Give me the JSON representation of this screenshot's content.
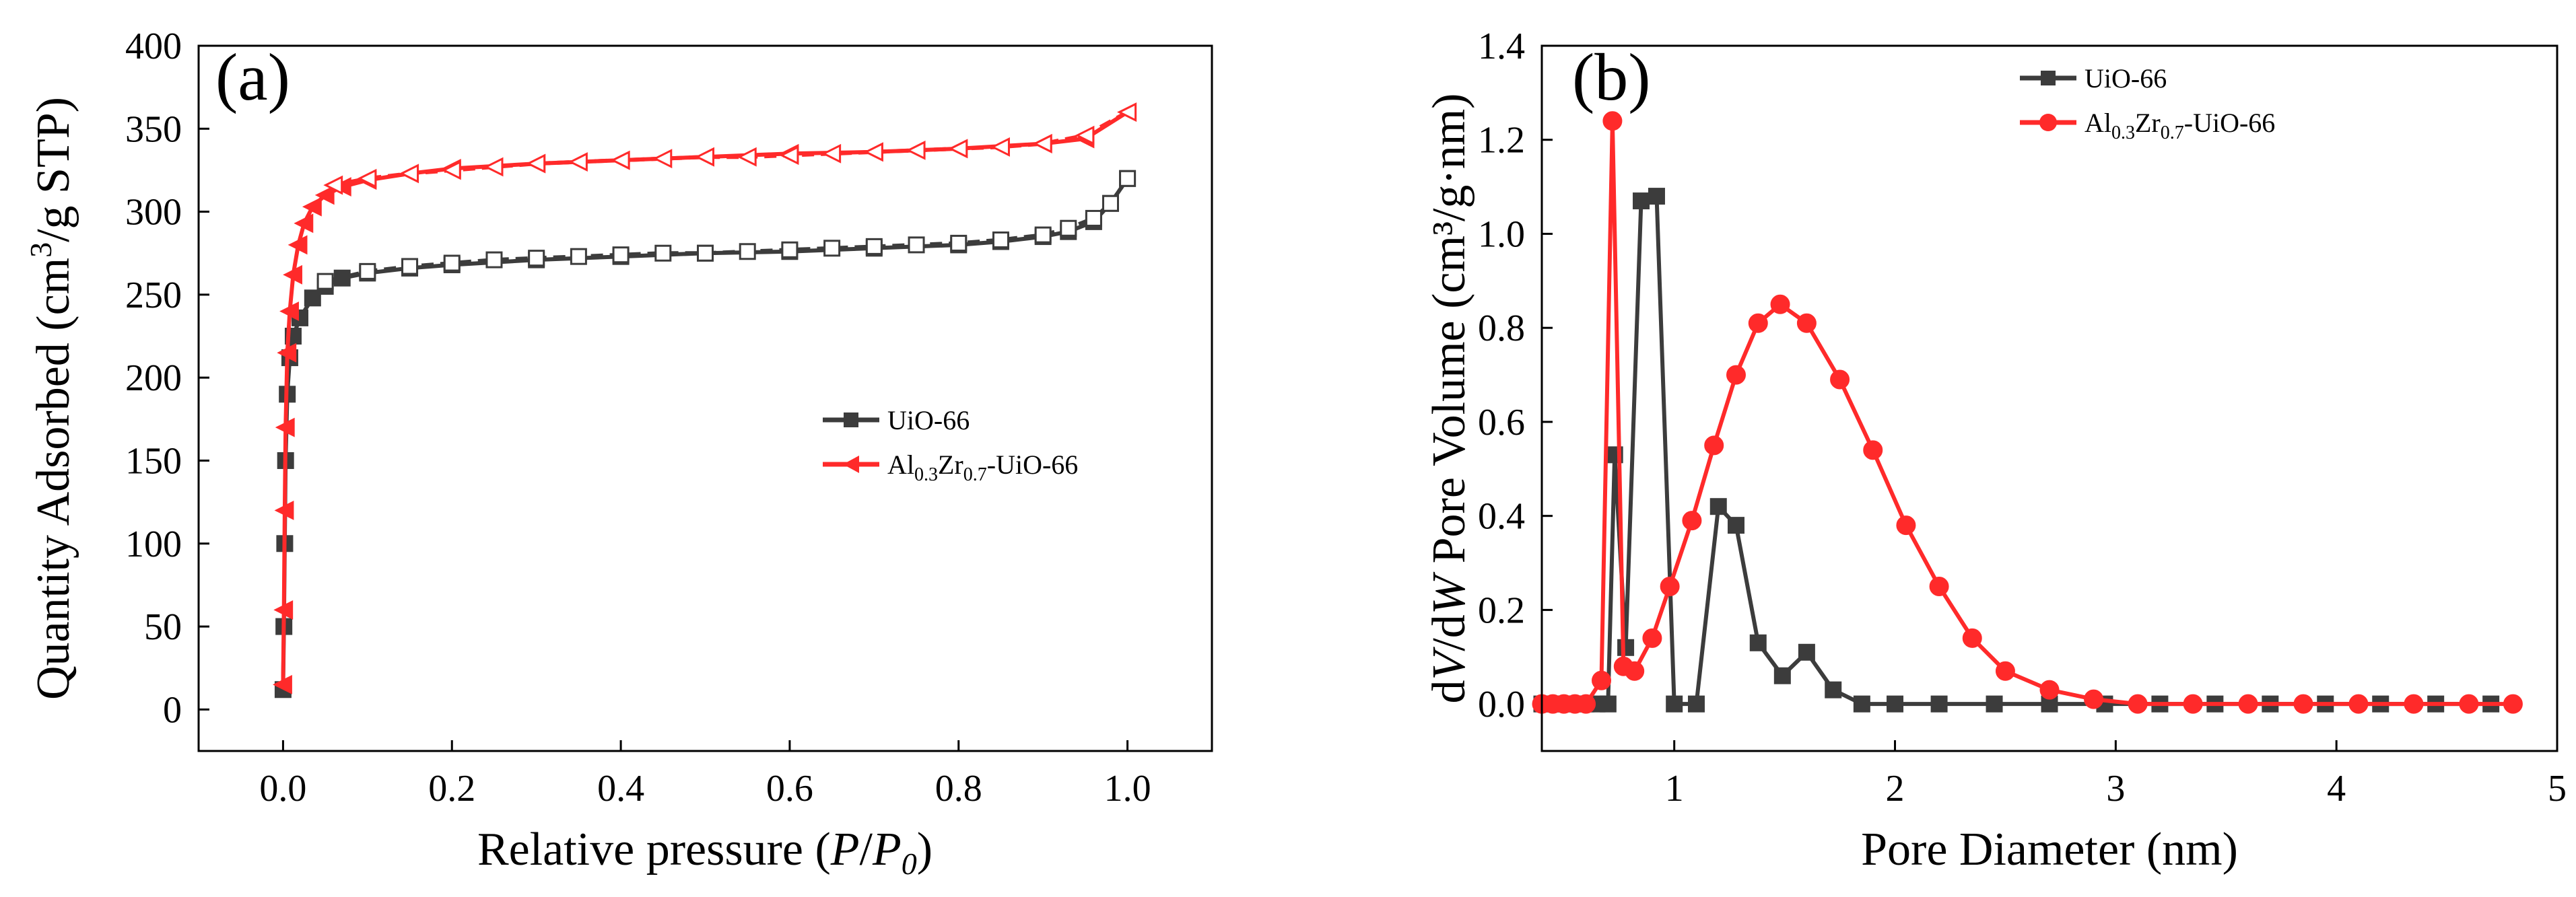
{
  "chart_data": [
    {
      "type": "line",
      "panel_label": "(a)",
      "xlabel_prefix": "Relative pressure (",
      "xlabel_italic_1": "P",
      "xlabel_sep": "/",
      "xlabel_italic_2": "P",
      "xlabel_sub": "0",
      "xlabel_suffix": ")",
      "ylabel_prefix": "Quantity Adsorbed (cm",
      "ylabel_sup": "3",
      "ylabel_suffix": "/g STP)",
      "xlim": [
        -0.1,
        1.1
      ],
      "ylim": [
        -25,
        400
      ],
      "xticks": [
        0.0,
        0.2,
        0.4,
        0.6,
        0.8,
        1.0
      ],
      "xtick_labels": [
        "0.0",
        "0.2",
        "0.4",
        "0.6",
        "0.8",
        "1.0"
      ],
      "yticks": [
        0,
        50,
        100,
        150,
        200,
        250,
        300,
        350,
        400
      ],
      "ytick_labels": [
        "0",
        "50",
        "100",
        "150",
        "200",
        "250",
        "300",
        "350",
        "400"
      ],
      "legend_position": "center-right",
      "series": [
        {
          "name": "UiO-66",
          "legend_prefix": "UiO-66",
          "color": "#3c3c3c",
          "marker": "square",
          "adsorption": {
            "x": [
              0.0,
              0.001,
              0.002,
              0.003,
              0.005,
              0.008,
              0.012,
              0.02,
              0.035,
              0.05,
              0.07,
              0.1,
              0.15,
              0.2,
              0.3,
              0.4,
              0.5,
              0.6,
              0.7,
              0.8,
              0.85,
              0.9,
              0.93,
              0.96,
              0.98,
              1.0
            ],
            "y": [
              12,
              50,
              100,
              150,
              190,
              212,
              225,
              236,
              248,
              255,
              260,
              263,
              266,
              268,
              271,
              273,
              275,
              276,
              278,
              280,
              282,
              285,
              288,
              294,
              305,
              320
            ]
          },
          "desorption": {
            "x": [
              1.0,
              0.98,
              0.96,
              0.93,
              0.9,
              0.85,
              0.8,
              0.75,
              0.7,
              0.65,
              0.6,
              0.55,
              0.5,
              0.45,
              0.4,
              0.35,
              0.3,
              0.25,
              0.2,
              0.15,
              0.1,
              0.05
            ],
            "y": [
              320,
              305,
              296,
              290,
              286,
              283,
              281,
              280,
              279,
              278,
              277,
              276,
              275,
              275,
              274,
              273,
              272,
              271,
              269,
              267,
              264,
              258
            ]
          }
        },
        {
          "name": "Al0.3Zr0.7-UiO-66",
          "legend_prefix": "Al",
          "legend_sub1": "0.3",
          "legend_mid": "Zr",
          "legend_sub2": "0.7",
          "legend_suffix": "-UiO-66",
          "color": "#ff2a2a",
          "marker": "triangle-left",
          "adsorption": {
            "x": [
              0.0,
              0.001,
              0.002,
              0.003,
              0.005,
              0.008,
              0.012,
              0.018,
              0.025,
              0.035,
              0.05,
              0.07,
              0.1,
              0.15,
              0.2,
              0.3,
              0.4,
              0.5,
              0.6,
              0.7,
              0.8,
              0.9,
              0.95,
              1.0
            ],
            "y": [
              15,
              60,
              120,
              170,
              215,
              240,
              262,
              280,
              293,
              303,
              310,
              315,
              319,
              323,
              326,
              329,
              331,
              333,
              335,
              336,
              338,
              341,
              344,
              360
            ]
          },
          "desorption": {
            "x": [
              1.0,
              0.95,
              0.9,
              0.85,
              0.8,
              0.75,
              0.7,
              0.65,
              0.6,
              0.55,
              0.5,
              0.45,
              0.4,
              0.35,
              0.3,
              0.25,
              0.2,
              0.15,
              0.1,
              0.06
            ],
            "y": [
              360,
              346,
              341,
              339,
              338,
              337,
              336,
              335,
              334,
              333,
              333,
              332,
              331,
              330,
              329,
              327,
              325,
              323,
              320,
              316
            ]
          }
        }
      ]
    },
    {
      "type": "line",
      "panel_label": "(b)",
      "xlabel": "Pore Diameter (nm)",
      "ylabel_d1": "d",
      "ylabel_v": "V",
      "ylabel_slash": "/d",
      "ylabel_w": "W",
      "ylabel_rest": " Pore Volume (cm³/g·nm)",
      "xlim": [
        0.4,
        5
      ],
      "ylim": [
        -0.1,
        1.4
      ],
      "xticks": [
        1,
        2,
        3,
        4,
        5
      ],
      "xtick_labels": [
        "1",
        "2",
        "3",
        "4",
        "5"
      ],
      "yticks": [
        0.0,
        0.2,
        0.4,
        0.6,
        0.8,
        1.0,
        1.2,
        1.4
      ],
      "ytick_labels": [
        "0.0",
        "0.2",
        "0.4",
        "0.6",
        "0.8",
        "1.0",
        "1.2",
        "1.4"
      ],
      "legend_position": "top-center",
      "series": [
        {
          "name": "UiO-66",
          "legend_prefix": "UiO-66",
          "color": "#3c3c3c",
          "marker": "square",
          "x": [
            0.4,
            0.45,
            0.5,
            0.55,
            0.6,
            0.65,
            0.7,
            0.73,
            0.78,
            0.85,
            0.92,
            1.0,
            1.1,
            1.2,
            1.28,
            1.38,
            1.49,
            1.6,
            1.72,
            1.85,
            2.0,
            2.2,
            2.45,
            2.7,
            2.95,
            3.2,
            3.45,
            3.7,
            3.95,
            4.2,
            4.45,
            4.7
          ],
          "y": [
            0,
            0,
            0,
            0,
            0,
            0,
            0,
            0.53,
            0.12,
            1.07,
            1.08,
            0,
            0,
            0.42,
            0.38,
            0.13,
            0.06,
            0.11,
            0.03,
            0,
            0,
            0,
            0,
            0,
            0,
            0,
            0,
            0,
            0,
            0,
            0,
            0
          ]
        },
        {
          "name": "Al0.3Zr0.7-UiO-66",
          "legend_prefix": "Al",
          "legend_sub1": "0.3",
          "legend_mid": "Zr",
          "legend_sub2": "0.7",
          "legend_suffix": "-UiO-66",
          "color": "#ff2a2a",
          "marker": "circle",
          "x": [
            0.4,
            0.45,
            0.5,
            0.55,
            0.6,
            0.67,
            0.72,
            0.77,
            0.82,
            0.9,
            0.98,
            1.08,
            1.18,
            1.28,
            1.38,
            1.48,
            1.6,
            1.75,
            1.9,
            2.05,
            2.2,
            2.35,
            2.5,
            2.7,
            2.9,
            3.1,
            3.35,
            3.6,
            3.85,
            4.1,
            4.35,
            4.6,
            4.8
          ],
          "y": [
            0,
            0,
            0,
            0,
            0,
            0.05,
            1.24,
            0.08,
            0.07,
            0.14,
            0.25,
            0.39,
            0.55,
            0.7,
            0.81,
            0.85,
            0.81,
            0.69,
            0.54,
            0.38,
            0.25,
            0.14,
            0.07,
            0.03,
            0.01,
            0,
            0,
            0,
            0,
            0,
            0,
            0,
            0
          ]
        }
      ]
    }
  ]
}
